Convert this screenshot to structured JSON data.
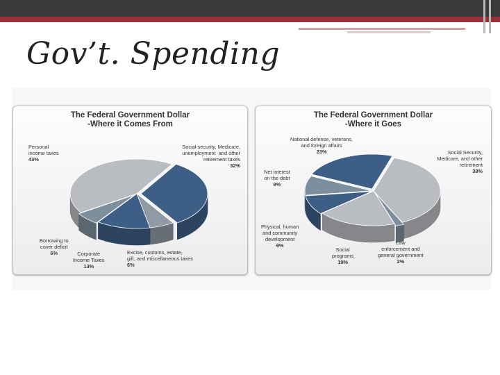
{
  "slide": {
    "title": "Gov’t. Spending"
  },
  "colors": {
    "header": "#3a3a3a",
    "accent": "#9a2f3b",
    "light_gray": "#b9bcc0",
    "blue": "#3d5f86",
    "steel": "#7d8e9c"
  },
  "chart_data": [
    {
      "type": "pie",
      "title": "The Federal Government Dollar",
      "subtitle": "-Where it Comes From",
      "slices": [
        {
          "name": "Personal income taxes",
          "value": 43,
          "label": "43%",
          "color": "#b9bcc0"
        },
        {
          "name": "Social security, Medicare, unemployment and other retirement taxes",
          "value": 32,
          "label": "32%",
          "color": "#3d5f86"
        },
        {
          "name": "Excise, customs, estate, gift, and miscellaneous taxes",
          "value": 6,
          "label": "6%",
          "color": "#8f9aa4"
        },
        {
          "name": "Corporate Income Taxes",
          "value": 13,
          "label": "13%",
          "color": "#3d5f86"
        },
        {
          "name": "Borrowing to cover deficit",
          "value": 6,
          "label": "6%",
          "color": "#7d8e9c"
        }
      ]
    },
    {
      "type": "pie",
      "title": "The Federal Government Dollar",
      "subtitle": "-Where it Goes",
      "slices": [
        {
          "name": "National defense, veterans, and foreign affairs",
          "value": 23,
          "label": "23%",
          "color": "#3d5f86"
        },
        {
          "name": "Social Security, Medicare, and other retirement",
          "value": 38,
          "label": "38%",
          "color": "#b9bcc0"
        },
        {
          "name": "Law enforcement and general government",
          "value": 2,
          "label": "2%",
          "color": "#7d8e9c"
        },
        {
          "name": "Social programs",
          "value": 19,
          "label": "19%",
          "color": "#b9bcc0"
        },
        {
          "name": "Physical, human and community development",
          "value": 9,
          "label": "9%",
          "color": "#3d5f86"
        },
        {
          "name": "Net interest on the debt",
          "value": 9,
          "label": "9%",
          "color": "#7d8e9c"
        }
      ]
    }
  ],
  "labels": {
    "left": {
      "personal": "Personal\nincome taxes",
      "social": "Social security, Medicare,\nunemployment  and other\nretirement taxes",
      "excise": "Excise, customs, estate,\ngift, and miscellaneous taxes",
      "corporate": "Corporate\nIncome Taxes",
      "borrowing": "Borrowing to\ncover deficit"
    },
    "right": {
      "defense": "National defense, veterans,\nand foreign affairs",
      "ss": "Social Security,\nMedicare, and other\nretirement",
      "law": "Law\nenforcement and\ngeneral government",
      "social": "Social\nprograms",
      "physical": "Physical, human\nand community\ndevelopment",
      "interest": "Net interest\non the debt"
    }
  }
}
